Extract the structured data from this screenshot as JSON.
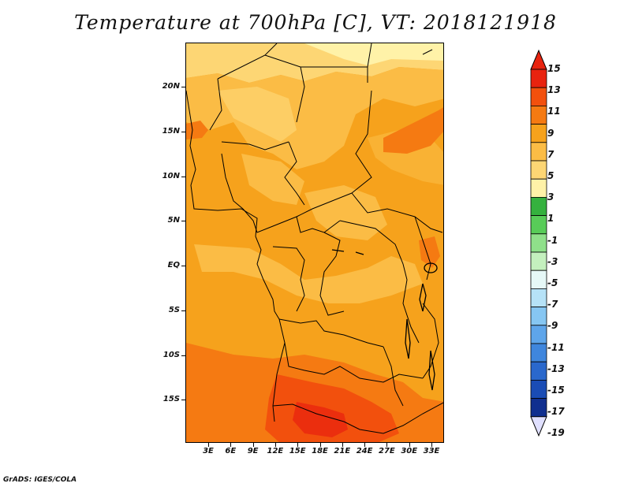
{
  "title": "Temperature at 700hPa [C], VT: 2018121918",
  "credit": "GrADS: IGES/COLA",
  "lat_labels": [
    "20N",
    "15N",
    "10N",
    "5N",
    "EQ",
    "5S",
    "10S",
    "15S"
  ],
  "lon_labels": [
    "3E",
    "6E",
    "9E",
    "12E",
    "15E",
    "18E",
    "21E",
    "24E",
    "27E",
    "30E",
    "33E"
  ],
  "colorbar": {
    "labels": [
      "15",
      "13",
      "11",
      "9",
      "7",
      "5",
      "3",
      "1",
      "-1",
      "-3",
      "-5",
      "-7",
      "-9",
      "-11",
      "-13",
      "-15",
      "-17",
      "-19"
    ],
    "colors": [
      "#e8230f",
      "#f2500d",
      "#f57a12",
      "#f6a21c",
      "#fbbc45",
      "#fdd674",
      "#fff2a8",
      "#35b13e",
      "#58cc58",
      "#8fe08a",
      "#c4f0be",
      "#e6f8f7",
      "#b6e2f7",
      "#86c6f2",
      "#5ea5ea",
      "#3f86dd",
      "#2a68cc",
      "#1a4cb5",
      "#102f8f",
      "#0a1670"
    ],
    "over_color": "#e8230f",
    "under_color": "#e0e0ff"
  },
  "map": {
    "region": "Central Africa",
    "lat_range": [
      "19S",
      "24N"
    ],
    "lon_range": [
      "0E",
      "35E"
    ]
  }
}
